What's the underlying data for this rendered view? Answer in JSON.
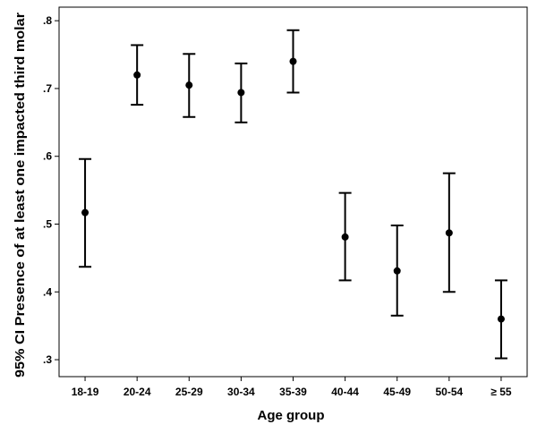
{
  "chart_data": {
    "type": "errorbar",
    "xlabel": "Age group",
    "ylabel": "95% CI Presence of at least one impacted third molar",
    "ylim": [
      0.275,
      0.82
    ],
    "yticks": [
      ".3",
      ".4",
      ".5",
      ".6",
      ".7",
      ".8"
    ],
    "ytick_values": [
      0.3,
      0.4,
      0.5,
      0.6,
      0.7,
      0.8
    ],
    "grid": false,
    "categories": [
      "18-19",
      "20-24",
      "25-29",
      "30-34",
      "35-39",
      "40-44",
      "45-49",
      "50-54",
      "≥ 55"
    ],
    "mean": [
      0.517,
      0.72,
      0.705,
      0.694,
      0.74,
      0.481,
      0.431,
      0.487,
      0.36
    ],
    "lower": [
      0.437,
      0.676,
      0.658,
      0.65,
      0.694,
      0.417,
      0.365,
      0.4,
      0.302
    ],
    "upper": [
      0.596,
      0.764,
      0.751,
      0.737,
      0.786,
      0.546,
      0.498,
      0.575,
      0.417
    ]
  }
}
